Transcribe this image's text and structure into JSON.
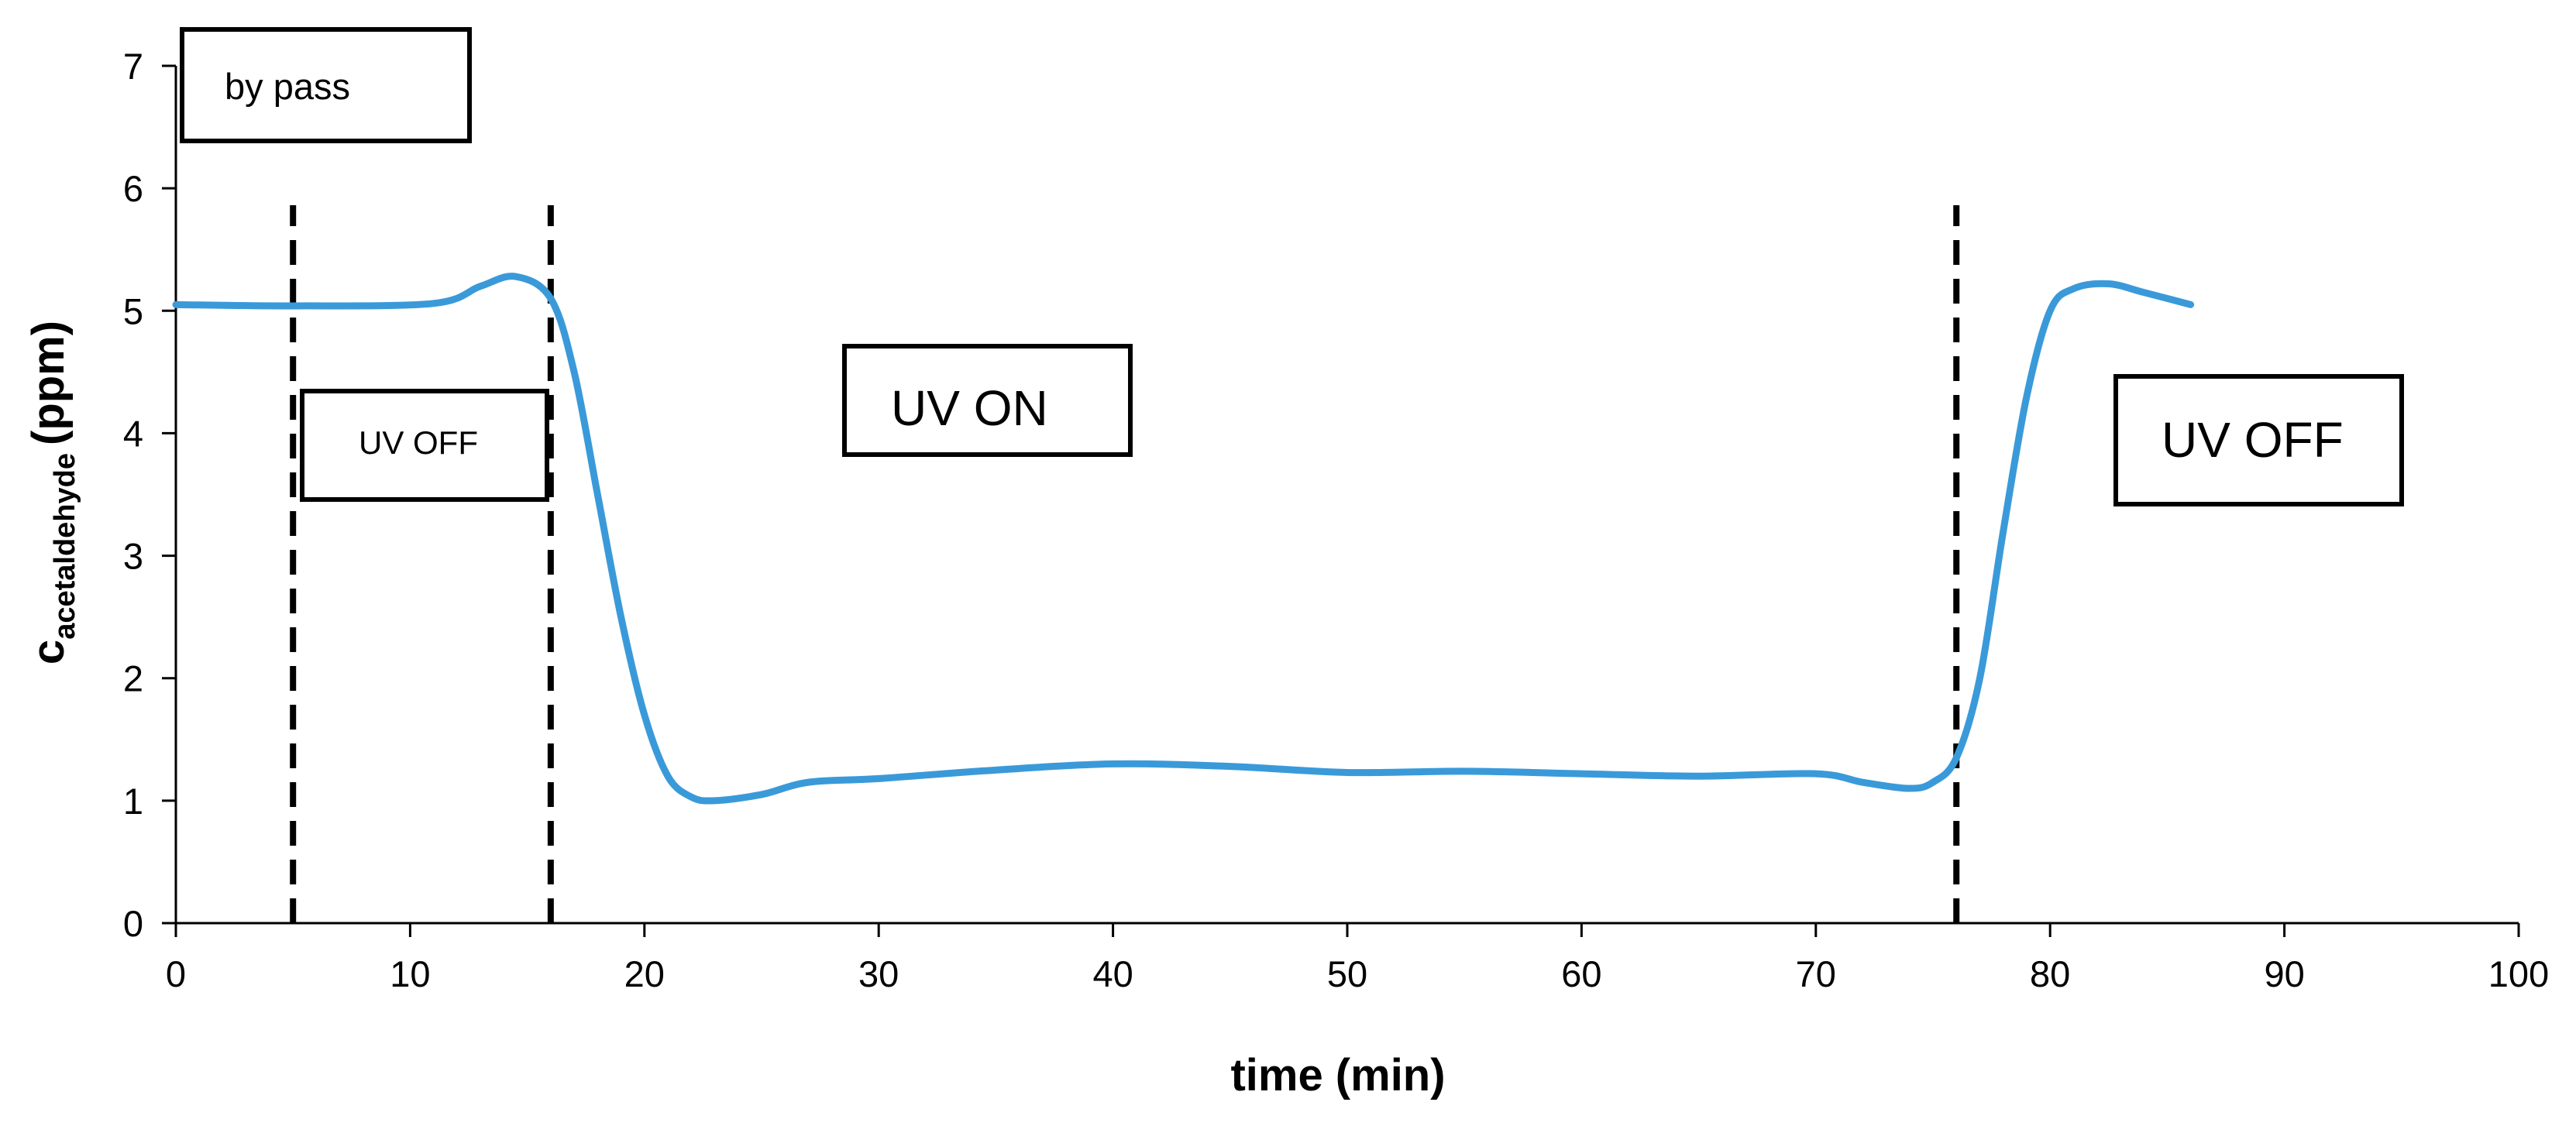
{
  "chart_data": {
    "type": "line",
    "x_label": "time (min)",
    "y_label": "c",
    "y_label_subscript": "acetaldehyde",
    "y_label_unit": "(ppm)",
    "x": [
      0,
      5,
      11,
      13,
      14.5,
      16,
      17,
      18,
      19,
      20,
      21,
      22,
      23,
      25,
      27,
      30,
      35,
      40,
      45,
      50,
      55,
      60,
      65,
      70,
      72,
      74,
      75,
      76,
      77,
      78,
      79,
      80,
      81,
      82.5,
      84,
      86
    ],
    "series": [
      {
        "color": "#3a9ad9",
        "values": [
          5.05,
          5.04,
          5.06,
          5.2,
          5.28,
          5.1,
          4.5,
          3.5,
          2.5,
          1.7,
          1.2,
          1.03,
          1.0,
          1.05,
          1.15,
          1.18,
          1.25,
          1.3,
          1.28,
          1.23,
          1.24,
          1.22,
          1.2,
          1.22,
          1.15,
          1.1,
          1.15,
          1.35,
          2.0,
          3.2,
          4.3,
          5.0,
          5.18,
          5.22,
          5.15,
          5.05
        ]
      }
    ],
    "vlines": [
      5,
      16,
      76
    ],
    "annotations": [
      "by pass",
      "UV OFF",
      "UV ON",
      "UV OFF"
    ],
    "xlim": [
      0,
      100
    ],
    "xticks": [
      0,
      10,
      20,
      30,
      40,
      50,
      60,
      70,
      80,
      90,
      100
    ],
    "ylim": [
      0,
      7
    ],
    "yticks": [
      0,
      1,
      2,
      3,
      4,
      5,
      6,
      7
    ]
  }
}
